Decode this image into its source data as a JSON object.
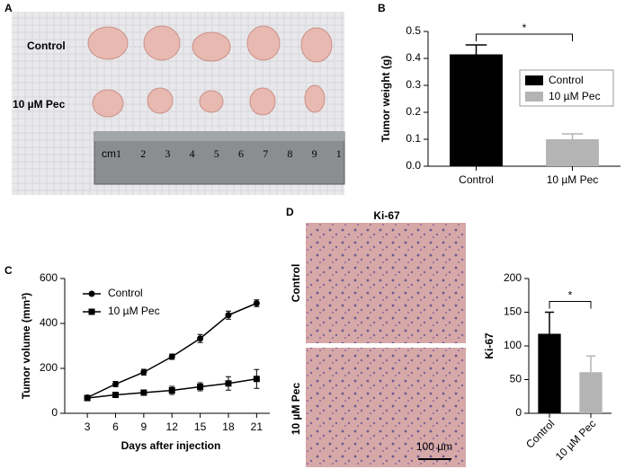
{
  "panel_a": {
    "label": "A",
    "rows": [
      "Control",
      "10 µM Pec"
    ],
    "ruler_unit": "cm",
    "ruler_marks": [
      "1",
      "2",
      "3",
      "4",
      "5",
      "6",
      "7",
      "8",
      "9",
      "1"
    ]
  },
  "panel_d": {
    "label": "D",
    "title": "Ki-67",
    "rows": [
      "Control",
      "10 µM Pec"
    ],
    "scale_bar": "100 µm"
  },
  "chart_data": [
    {
      "type": "bar",
      "label": "B",
      "ylabel": "Tumor weight (g)",
      "categories": [
        "Control",
        "10 µM Pec"
      ],
      "values": [
        0.415,
        0.1
      ],
      "errors": [
        0.035,
        0.02
      ],
      "colors": [
        "#000000",
        "#b4b4b4"
      ],
      "ylim": [
        0,
        0.5
      ],
      "yticks": [
        {
          "value": 0,
          "label": "0.0"
        },
        0.1,
        0.2,
        0.3,
        0.4,
        0.5
      ],
      "legend": true,
      "significance": "*"
    },
    {
      "type": "line",
      "label": "C",
      "xlabel": "Days after injection",
      "ylabel": "Tumor volume (mm³)",
      "x": [
        3,
        6,
        9,
        12,
        15,
        18,
        21
      ],
      "xlim": [
        0.6,
        22.4
      ],
      "xticks": [
        3,
        6,
        9,
        12,
        15,
        18,
        21
      ],
      "ylim": [
        0,
        600
      ],
      "yticks": [
        0,
        200,
        400,
        600
      ],
      "series": [
        {
          "name": "Control",
          "color": "#000000",
          "marker": "circle",
          "values": [
            70,
            130,
            183,
            252,
            333,
            437,
            490
          ],
          "errors": [
            8,
            12,
            13,
            12,
            18,
            18,
            15
          ]
        },
        {
          "name": "10 µM Pec",
          "color": "#000000",
          "marker": "square",
          "values": [
            68,
            82,
            92,
            102,
            118,
            133,
            153
          ],
          "errors": [
            6,
            8,
            12,
            18,
            18,
            30,
            42
          ]
        }
      ]
    },
    {
      "type": "bar",
      "ylabel": "Ki-67",
      "categories": [
        "Control",
        "10 µM Pec"
      ],
      "values": [
        118,
        61
      ],
      "errors": [
        32,
        24
      ],
      "colors": [
        "#000000",
        "#b4b4b4"
      ],
      "ylim": [
        0,
        200
      ],
      "yticks": [
        0,
        50,
        100,
        150,
        200
      ],
      "xtick_rotation": -45,
      "significance": "*"
    }
  ]
}
